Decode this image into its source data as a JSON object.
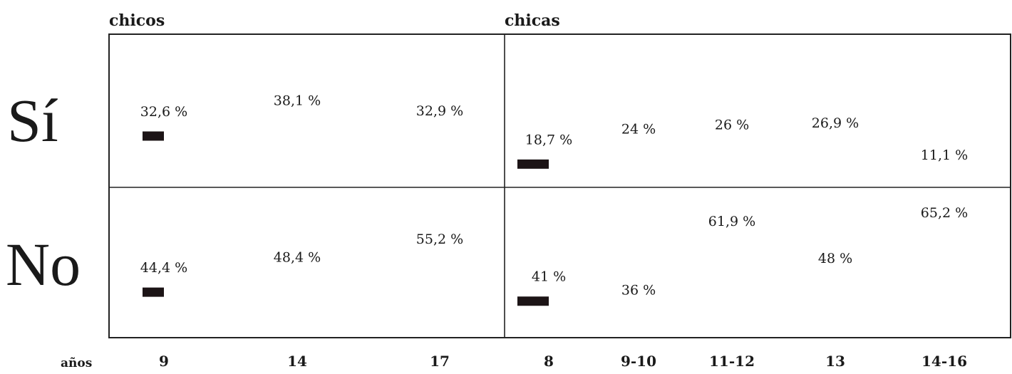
{
  "chart_data": [
    {
      "type": "line",
      "panel_title": "chicos",
      "x_caption": "años",
      "categories": [
        "9",
        "14",
        "17"
      ],
      "series": [
        {
          "row": "Sí",
          "values": [
            32.6,
            38.1,
            32.9
          ],
          "labels": [
            "32,6 %",
            "38,1 %",
            "32,9 %"
          ]
        },
        {
          "row": "No",
          "values": [
            44.4,
            48.4,
            55.2
          ],
          "labels": [
            "44,4 %",
            "48,4 %",
            "55,2 %"
          ]
        }
      ]
    },
    {
      "type": "line",
      "panel_title": "chicas",
      "categories": [
        "8",
        "9-10",
        "11-12",
        "13",
        "14-16"
      ],
      "series": [
        {
          "row": "Sí",
          "values": [
            18.7,
            24,
            26,
            26.9,
            11.1
          ],
          "labels": [
            "18,7 %",
            "24 %",
            "26 %",
            "26,9 %",
            "11,1 %"
          ]
        },
        {
          "row": "No",
          "values": [
            41,
            36,
            61.9,
            48,
            65.2
          ],
          "labels": [
            "41 %",
            "36 %",
            "61,9 %",
            "48 %",
            "65,2 %"
          ]
        }
      ]
    }
  ],
  "rows": {
    "si_label": "Sí",
    "no_label": "No"
  },
  "colors": {
    "line": "#1c1416",
    "frame": "#222222",
    "background": "#ffffff"
  }
}
